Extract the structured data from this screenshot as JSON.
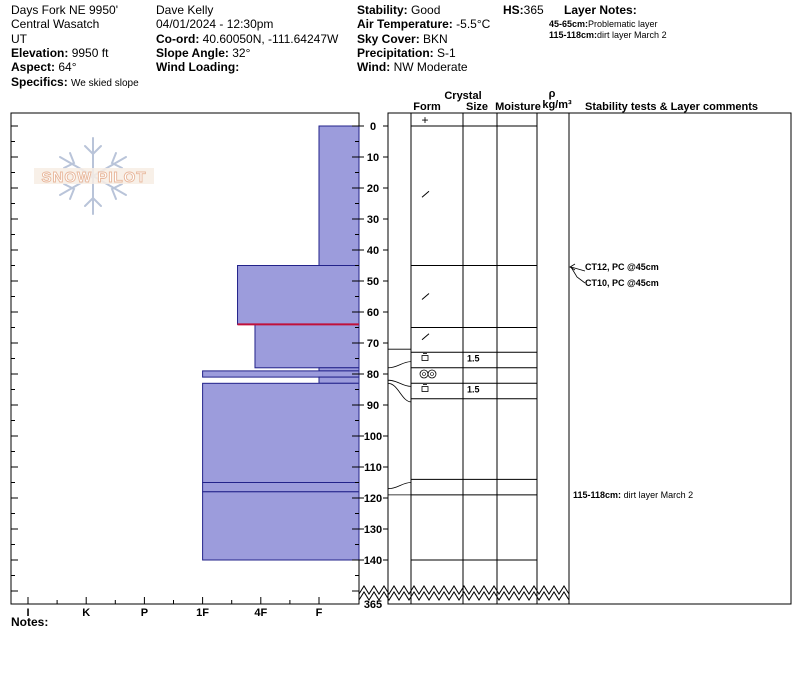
{
  "header": {
    "location": "Days Fork NE 9950'",
    "range": "Central Wasatch",
    "state": "UT",
    "elevation_label": "Elevation:",
    "elevation_value": "9950 ft",
    "aspect_label": "Aspect:",
    "aspect_value": "64°",
    "specifics_label": "Specifics:",
    "specifics_value": "We skied slope",
    "observer": "Dave Kelly",
    "datetime": "04/01/2024 - 12:30pm",
    "coord_label": "Co-ord:",
    "coord_value": "40.60050N, -111.64247W",
    "slope_label": "Slope Angle:",
    "slope_value": "32°",
    "wind_loading_label": "Wind Loading:",
    "wind_loading_value": "",
    "stability_label": "Stability:",
    "stability_value": "Good",
    "air_temp_label": "Air Temperature:",
    "air_temp_value": "-5.5°C",
    "sky_label": "Sky Cover:",
    "sky_value": "BKN",
    "precip_label": "Precipitation:",
    "precip_value": "S-1",
    "wind_label": "Wind:",
    "wind_value": "NW Moderate",
    "hs_label": "HS:",
    "hs_value": "365",
    "layer_notes_title": "Layer Notes:",
    "layer_notes": [
      {
        "range": "45-65cm:",
        "text": "Problematic layer"
      },
      {
        "range": "115-118cm:",
        "text": "dirt layer March 2"
      }
    ],
    "notes_label": "Notes:"
  },
  "logo": {
    "text": "SNOW PILOT"
  },
  "columns": {
    "crystal": "Crystal",
    "form": "Form",
    "size": "Size",
    "moisture": "Moisture",
    "rho": "ρ",
    "density_unit": "kg/m³",
    "comments": "Stability tests & Layer comments"
  },
  "chart_data": {
    "type": "snow_profile_hand_hardness",
    "hardness_axis": [
      "I",
      "K",
      "P",
      "1F",
      "4F",
      "F"
    ],
    "depth_ticks": [
      0,
      10,
      20,
      30,
      40,
      50,
      60,
      70,
      80,
      90,
      100,
      110,
      120,
      130,
      140
    ],
    "total_depth_label": "365",
    "layers": [
      {
        "top": 0,
        "bottom": 45,
        "hardness": 5.0
      },
      {
        "top": 45,
        "bottom": 64,
        "hardness": 3.6
      },
      {
        "top": 64,
        "bottom": 78,
        "hardness": 3.9
      },
      {
        "top": 78,
        "bottom": 79,
        "hardness": 5.0
      },
      {
        "top": 79,
        "bottom": 81,
        "hardness": 3.0
      },
      {
        "top": 81,
        "bottom": 83,
        "hardness": 5.0
      },
      {
        "top": 83,
        "bottom": 115,
        "hardness": 3.0
      },
      {
        "top": 115,
        "bottom": 118,
        "hardness": 3.0
      },
      {
        "top": 118,
        "bottom": 140,
        "hardness": 3.0
      }
    ],
    "red_boundary_depth": 64,
    "grain_rows": [
      {
        "depth": 0,
        "form": "+",
        "size": ""
      },
      {
        "depth": 22,
        "form": "/",
        "size": ""
      },
      {
        "depth": 55,
        "form": "/",
        "size": ""
      },
      {
        "depth": 68,
        "form": "/",
        "size": ""
      },
      {
        "depth": 75,
        "form": "cup",
        "size": "1.5"
      },
      {
        "depth": 80,
        "form": "oo",
        "size": ""
      },
      {
        "depth": 85,
        "form": "cup",
        "size": "1.5"
      }
    ],
    "stability_comments": [
      {
        "depth": 45,
        "text": "CT12, PC @45cm"
      },
      {
        "depth": 45,
        "text": "CT10, PC @45cm"
      },
      {
        "depth": 115,
        "range": "115-118cm:",
        "text": "dirt layer March 2"
      }
    ]
  }
}
